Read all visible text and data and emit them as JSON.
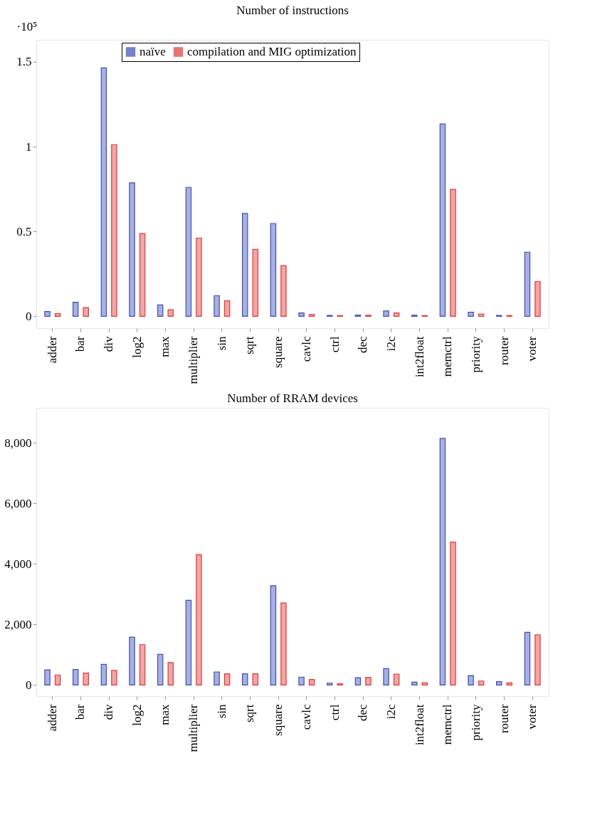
{
  "chart_data": [
    {
      "type": "bar",
      "title": "Number of instructions",
      "ylabel": "·10⁵",
      "categories": [
        "adder",
        "bar",
        "div",
        "log2",
        "max",
        "multiplier",
        "sin",
        "sqrt",
        "square",
        "cavlc",
        "ctrl",
        "dec",
        "i2c",
        "int2float",
        "memctrl",
        "priority",
        "router",
        "voter"
      ],
      "series": [
        {
          "name": "naïve",
          "color": "#3f4fb8",
          "values": [
            0.028,
            0.083,
            1.465,
            0.787,
            0.067,
            0.76,
            0.122,
            0.606,
            0.547,
            0.02,
            0.005,
            0.007,
            0.031,
            0.006,
            1.134,
            0.024,
            0.005,
            0.378
          ]
        },
        {
          "name": "compilation and MIG optimization",
          "color": "#e03a3a",
          "values": [
            0.016,
            0.051,
            1.012,
            0.488,
            0.039,
            0.461,
            0.091,
            0.394,
            0.299,
            0.01,
            0.004,
            0.006,
            0.02,
            0.004,
            0.748,
            0.014,
            0.004,
            0.205
          ]
        }
      ],
      "ylim": [
        -0.07,
        1.63
      ],
      "yticks": [
        0,
        0.5,
        1,
        1.5
      ],
      "grid": false,
      "legend": "top"
    },
    {
      "type": "bar",
      "title": "Number of RRAM devices",
      "categories": [
        "adder",
        "bar",
        "div",
        "log2",
        "max",
        "multiplier",
        "sin",
        "sqrt",
        "square",
        "cavlc",
        "ctrl",
        "dec",
        "i2c",
        "int2float",
        "memctrl",
        "priority",
        "router",
        "voter"
      ],
      "series": [
        {
          "name": "naïve",
          "color": "#3f4fb8",
          "values": [
            500,
            510,
            680,
            1580,
            1010,
            2800,
            430,
            370,
            3280,
            260,
            60,
            240,
            540,
            90,
            8150,
            310,
            110,
            1740
          ]
        },
        {
          "name": "compilation and MIG optimization",
          "color": "#e03a3a",
          "values": [
            330,
            390,
            480,
            1330,
            740,
            4310,
            370,
            370,
            2710,
            180,
            40,
            250,
            360,
            70,
            4720,
            130,
            70,
            1660
          ]
        }
      ],
      "ylim": [
        -370,
        9160
      ],
      "yticks": [
        0,
        {
          "value": 2000,
          "label": "2,000"
        },
        {
          "value": 4000,
          "label": "4,000"
        },
        {
          "value": 6000,
          "label": "6,000"
        },
        {
          "value": 8000,
          "label": "8,000"
        }
      ],
      "grid": false,
      "legend": "top"
    }
  ]
}
